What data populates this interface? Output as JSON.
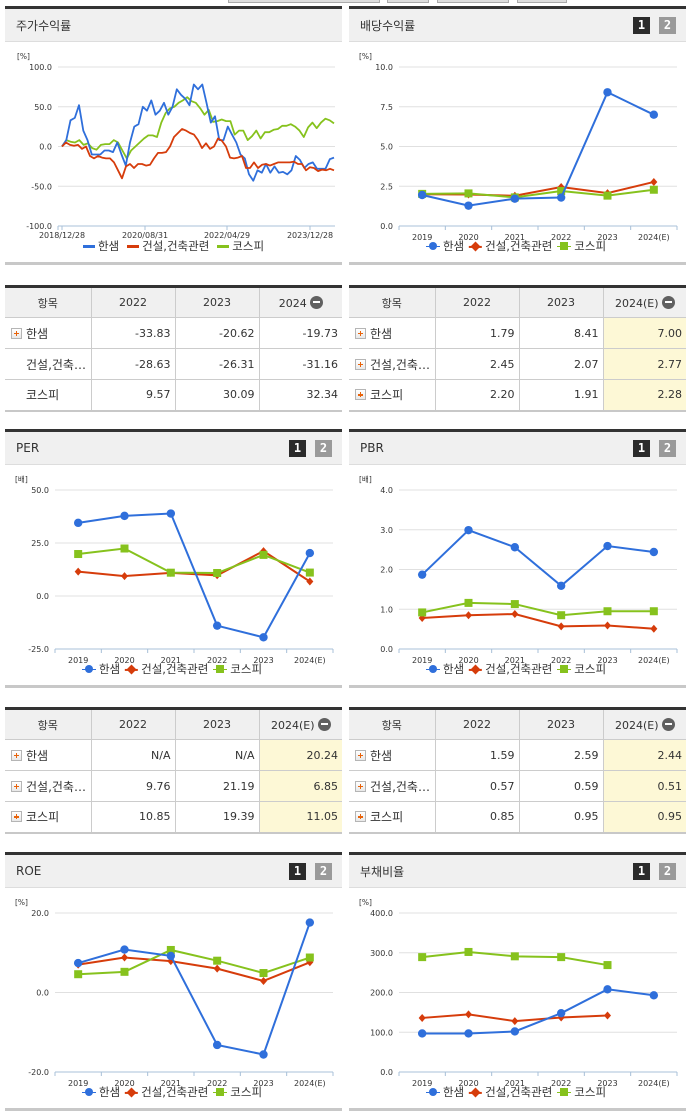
{
  "colors": {
    "hansaem": "#2f6fdb",
    "sector": "#d63c0b",
    "kospi": "#86c21d",
    "grid": "#e0e0e0",
    "axis": "#a8c0d8",
    "estimate_bg": "#fdf8d6"
  },
  "legend": {
    "hansaem": "한샘",
    "sector": "건설,건축관련",
    "kospi": "코스피"
  },
  "pager": {
    "page1": "1",
    "page2": "2"
  },
  "panels": {
    "stock_return": {
      "title": "주가수익률",
      "unit": "[%]"
    },
    "dividend_yield": {
      "title": "배당수익률",
      "unit": "[%]"
    },
    "per": {
      "title": "PER",
      "unit": "[배]"
    },
    "pbr": {
      "title": "PBR",
      "unit": "[배]"
    },
    "roe": {
      "title": "ROE",
      "unit": "[%]"
    },
    "debt_ratio": {
      "title": "부채비율",
      "unit": "[%]"
    }
  },
  "tables": {
    "stock_return": {
      "headers": [
        "항목",
        "2022",
        "2023",
        "2024"
      ],
      "rows": [
        {
          "name": "한샘",
          "expandable": true,
          "values": [
            "-33.83",
            "-20.62",
            "-19.73"
          ]
        },
        {
          "name": "건설,건축…",
          "expandable": false,
          "values": [
            "-28.63",
            "-26.31",
            "-31.16"
          ]
        },
        {
          "name": "코스피",
          "expandable": false,
          "values": [
            "9.57",
            "30.09",
            "32.34"
          ]
        }
      ]
    },
    "dividend_yield": {
      "headers": [
        "항목",
        "2022",
        "2023",
        "2024(E)"
      ],
      "rows": [
        {
          "name": "한샘",
          "expandable": true,
          "values": [
            "1.79",
            "8.41",
            "7.00"
          ]
        },
        {
          "name": "건설,건축…",
          "expandable": true,
          "values": [
            "2.45",
            "2.07",
            "2.77"
          ]
        },
        {
          "name": "코스피",
          "expandable": true,
          "values": [
            "2.20",
            "1.91",
            "2.28"
          ]
        }
      ]
    },
    "per": {
      "headers": [
        "항목",
        "2022",
        "2023",
        "2024(E)"
      ],
      "rows": [
        {
          "name": "한샘",
          "expandable": true,
          "values": [
            "N/A",
            "N/A",
            "20.24"
          ]
        },
        {
          "name": "건설,건축…",
          "expandable": true,
          "values": [
            "9.76",
            "21.19",
            "6.85"
          ]
        },
        {
          "name": "코스피",
          "expandable": true,
          "values": [
            "10.85",
            "19.39",
            "11.05"
          ]
        }
      ]
    },
    "pbr": {
      "headers": [
        "항목",
        "2022",
        "2023",
        "2024(E)"
      ],
      "rows": [
        {
          "name": "한샘",
          "expandable": true,
          "values": [
            "1.59",
            "2.59",
            "2.44"
          ]
        },
        {
          "name": "건설,건축…",
          "expandable": true,
          "values": [
            "0.57",
            "0.59",
            "0.51"
          ]
        },
        {
          "name": "코스피",
          "expandable": true,
          "values": [
            "0.85",
            "0.95",
            "0.95"
          ]
        }
      ]
    }
  },
  "chart_data": [
    {
      "id": "stock_return",
      "type": "line",
      "title": "주가수익률",
      "ylabel": "[%]",
      "ylim": [
        -100,
        100
      ],
      "yticks": [
        "100.0",
        "50.0",
        "0.0",
        "-50.0",
        "-100.0"
      ],
      "xticks": [
        "2018/12/28",
        "2020/08/31",
        "2022/04/29",
        "2023/12/28"
      ],
      "grid": true,
      "legend_position": "bottom",
      "series": [
        {
          "name": "한샘",
          "values": [
            0,
            8,
            33,
            36,
            52,
            20,
            8,
            -10,
            -10,
            -10,
            -5,
            -5,
            -7,
            5,
            -10,
            -24,
            5,
            25,
            28,
            50,
            45,
            58,
            40,
            45,
            55,
            40,
            50,
            72,
            65,
            60,
            52,
            78,
            72,
            78,
            55,
            30,
            38,
            8,
            8,
            25,
            15,
            5,
            -10,
            -15,
            -35,
            -43,
            -30,
            -33,
            -22,
            -33,
            -25,
            -33,
            -32,
            -35,
            -30,
            -12,
            -17,
            -27,
            -22,
            -20,
            -28,
            -28,
            -28,
            -16,
            -14
          ]
        },
        {
          "name": "건설,건축관련",
          "values": [
            0,
            5,
            2,
            1,
            2,
            -3,
            0,
            -12,
            -15,
            -12,
            -14,
            -15,
            -15,
            -20,
            -30,
            -40,
            -25,
            -22,
            -27,
            -22,
            -22,
            -24,
            -23,
            -15,
            -8,
            -8,
            -7,
            0,
            12,
            17,
            22,
            20,
            17,
            15,
            8,
            -2,
            4,
            -3,
            0,
            10,
            7,
            0,
            -14,
            -15,
            -14,
            -12,
            -27,
            -27,
            -20,
            -27,
            -23,
            -22,
            -24,
            -22,
            -20,
            -20,
            -20,
            -20,
            -19,
            -22,
            -22,
            -30,
            -26,
            -27,
            -31,
            -29,
            -30,
            -28,
            -30
          ]
        },
        {
          "name": "코스피",
          "values": [
            0,
            8,
            6,
            5,
            8,
            2,
            4,
            -2,
            -4,
            2,
            3,
            3,
            8,
            5,
            -5,
            -15,
            -5,
            0,
            5,
            10,
            14,
            14,
            12,
            30,
            42,
            48,
            50,
            55,
            58,
            62,
            57,
            55,
            48,
            40,
            46,
            31,
            32,
            34,
            32,
            32,
            15,
            20,
            20,
            8,
            13,
            20,
            10,
            18,
            18,
            21,
            22,
            26,
            26,
            28,
            25,
            20,
            12,
            24,
            30,
            23,
            30,
            35,
            33,
            29
          ]
        }
      ]
    },
    {
      "id": "dividend_yield",
      "type": "line",
      "title": "배당수익률",
      "ylabel": "[%]",
      "ylim": [
        0,
        10
      ],
      "yticks": [
        "10.0",
        "7.5",
        "5.0",
        "2.5",
        "0.0"
      ],
      "categories": [
        "2019",
        "2020",
        "2021",
        "2022",
        "2023",
        "2024(E)"
      ],
      "grid": true,
      "legend_position": "bottom",
      "series": [
        {
          "name": "한샘",
          "values": [
            1.95,
            1.28,
            1.72,
            1.79,
            8.41,
            7.0
          ]
        },
        {
          "name": "건설,건축관련",
          "values": [
            2.0,
            1.98,
            1.9,
            2.45,
            2.07,
            2.77
          ]
        },
        {
          "name": "코스피",
          "values": [
            2.02,
            2.05,
            1.8,
            2.2,
            1.91,
            2.28
          ]
        }
      ]
    },
    {
      "id": "per",
      "type": "line",
      "title": "PER",
      "ylabel": "[배]",
      "ylim": [
        -25,
        50
      ],
      "yticks": [
        "50.0",
        "25.0",
        "0.0",
        "-25.0"
      ],
      "categories": [
        "2019",
        "2020",
        "2021",
        "2022",
        "2023",
        "2024(E)"
      ],
      "grid": true,
      "legend_position": "bottom",
      "series": [
        {
          "name": "한샘",
          "values": [
            34.5,
            37.8,
            38.9,
            -14.0,
            -19.5,
            20.24
          ]
        },
        {
          "name": "건설,건축관련",
          "values": [
            11.5,
            9.4,
            10.9,
            9.76,
            21.19,
            6.85
          ]
        },
        {
          "name": "코스피",
          "values": [
            19.8,
            22.4,
            11.0,
            10.85,
            19.39,
            11.05
          ]
        }
      ]
    },
    {
      "id": "pbr",
      "type": "line",
      "title": "PBR",
      "ylabel": "[배]",
      "ylim": [
        0,
        4
      ],
      "yticks": [
        "4.0",
        "3.0",
        "2.0",
        "1.0",
        "0.0"
      ],
      "categories": [
        "2019",
        "2020",
        "2021",
        "2022",
        "2023",
        "2024(E)"
      ],
      "grid": true,
      "legend_position": "bottom",
      "series": [
        {
          "name": "한샘",
          "values": [
            1.87,
            2.99,
            2.56,
            1.59,
            2.59,
            2.44
          ]
        },
        {
          "name": "건설,건축관련",
          "values": [
            0.78,
            0.85,
            0.88,
            0.57,
            0.59,
            0.51
          ]
        },
        {
          "name": "코스피",
          "values": [
            0.92,
            1.16,
            1.13,
            0.85,
            0.95,
            0.95
          ]
        }
      ]
    },
    {
      "id": "roe",
      "type": "line",
      "title": "ROE",
      "ylabel": "[%]",
      "ylim": [
        -20,
        20
      ],
      "yticks": [
        "20.0",
        "0.0",
        "-20.0"
      ],
      "categories": [
        "2019",
        "2020",
        "2021",
        "2022",
        "2023",
        "2024(E)"
      ],
      "grid": true,
      "legend_position": "bottom",
      "series": [
        {
          "name": "한샘",
          "values": [
            7.4,
            10.8,
            9.2,
            -13.2,
            -15.6,
            17.6
          ]
        },
        {
          "name": "건설,건축관련",
          "values": [
            7.0,
            8.8,
            7.9,
            6.0,
            2.9,
            7.6
          ]
        },
        {
          "name": "코스피",
          "values": [
            4.6,
            5.2,
            10.7,
            8.0,
            4.9,
            8.8
          ]
        }
      ]
    },
    {
      "id": "debt_ratio",
      "type": "line",
      "title": "부채비율",
      "ylabel": "[%]",
      "ylim": [
        0,
        400
      ],
      "yticks": [
        "400.0",
        "300.0",
        "200.0",
        "100.0",
        "0.0"
      ],
      "categories": [
        "2019",
        "2020",
        "2021",
        "2022",
        "2023",
        "2024(E)"
      ],
      "grid": true,
      "legend_position": "bottom",
      "series": [
        {
          "name": "한샘",
          "values": [
            97,
            97,
            102,
            148,
            208,
            193
          ]
        },
        {
          "name": "건설,건축관련",
          "values": [
            136,
            145,
            128,
            137,
            142,
            null
          ]
        },
        {
          "name": "코스피",
          "values": [
            289,
            302,
            291,
            289,
            269,
            null
          ]
        }
      ]
    }
  ]
}
